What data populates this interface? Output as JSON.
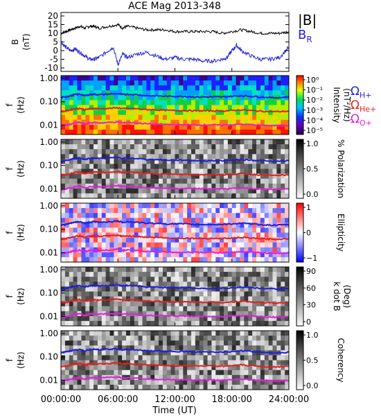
{
  "title": "ACE Mag 2013-348",
  "x_axis": {
    "label": "Time (UT)",
    "tick_labels": [
      "00:00:00",
      "06:00:00",
      "12:00:00",
      "18:00:00",
      "24:00:00"
    ]
  },
  "legend": {
    "top": [
      {
        "label": "|B|",
        "color": "#000000"
      },
      {
        "label": "B",
        "sub": "R",
        "color": "#1f1fdc"
      }
    ],
    "side": [
      {
        "label": "Ω",
        "sub": "H+",
        "color": "#1f1fdc"
      },
      {
        "label": "Ω",
        "sub": "He+",
        "color": "#e02020"
      },
      {
        "label": "Ω",
        "sub": "O+",
        "color": "#e020e0"
      }
    ]
  },
  "colorbars": [
    {
      "label": "Intensity",
      "label2": "(nT²/Hz)",
      "ticks": [
        "10⁰",
        "10⁻¹",
        "10⁻²",
        "10⁻³",
        "10⁻⁴",
        "10⁻⁵"
      ]
    },
    {
      "label": "% Polarization",
      "ticks": [
        "1.0",
        "0.5",
        "0.0"
      ]
    },
    {
      "label": "Ellipticity",
      "ticks": [
        "1",
        "0",
        "−1"
      ]
    },
    {
      "label": "k dot B",
      "label2": "(Deg)",
      "ticks": [
        "90",
        "60",
        "30",
        "0"
      ]
    },
    {
      "label": "Coherency",
      "ticks": [
        "1.0",
        "0.5",
        "0.0"
      ]
    }
  ],
  "chart_data": [
    {
      "type": "line",
      "panel": "field",
      "ylabel": "B",
      "yunit": "(nT)",
      "ylim": [
        -12,
        22
      ],
      "yticks": [
        20,
        15,
        10,
        5,
        0,
        -5,
        -10
      ],
      "xlim": [
        0,
        24
      ],
      "series": [
        {
          "name": "|B|",
          "color": "#000000",
          "x": [
            0,
            0.5,
            1,
            1.5,
            2,
            2.5,
            3,
            3.5,
            4,
            5,
            6,
            6.5,
            7,
            8,
            9,
            10,
            11,
            12,
            13,
            14,
            15,
            16,
            17,
            18,
            19,
            20,
            21,
            22,
            23,
            24
          ],
          "y": [
            10,
            11,
            12,
            13,
            14,
            13,
            14,
            14,
            13,
            14,
            15,
            13,
            14,
            13,
            12,
            12,
            12,
            11,
            11,
            11,
            11,
            11,
            10,
            11,
            12,
            11,
            10,
            10,
            10,
            11
          ]
        },
        {
          "name": "B_R",
          "color": "#1f1fdc",
          "x": [
            0,
            0.5,
            1,
            1.5,
            2,
            2.5,
            3,
            3.5,
            4,
            5,
            5.5,
            6,
            6.5,
            7,
            8,
            9,
            10,
            11,
            12,
            13,
            14,
            15,
            16,
            17,
            17.5,
            18,
            18.5,
            19,
            20,
            21,
            22,
            23,
            24
          ],
          "y": [
            5,
            2,
            0,
            1,
            -1,
            -3,
            -5,
            -5,
            -4,
            0,
            2,
            -8,
            -2,
            -4,
            -2,
            -1,
            -3,
            -5,
            -4,
            -5,
            -5,
            -6,
            -6,
            -5,
            -4,
            0,
            3,
            0,
            -3,
            -5,
            -5,
            -4,
            2
          ]
        }
      ]
    },
    {
      "type": "heatmap",
      "panel": "power spectral intensity",
      "ylabel": "f",
      "yunit": "(Hz)",
      "yscale": "log",
      "ylim": [
        0.004,
        1.3
      ],
      "yticks": [
        "1.00",
        "0.10",
        "0.01"
      ],
      "zscale": "log",
      "zlim": [
        1e-05,
        1
      ],
      "colormap": "rainbow"
    },
    {
      "type": "heatmap",
      "panel": "polarization",
      "ylabel": "f",
      "yunit": "(Hz)",
      "yscale": "log",
      "ylim": [
        0.004,
        1.3
      ],
      "yticks": [
        "1.00",
        "0.10",
        "0.01"
      ],
      "zlim": [
        0,
        1
      ],
      "colormap": "gray"
    },
    {
      "type": "heatmap",
      "panel": "ellipticity",
      "ylabel": "f",
      "yunit": "(Hz)",
      "yscale": "log",
      "ylim": [
        0.004,
        1.3
      ],
      "yticks": [
        "1.00",
        "0.10",
        "0.01"
      ],
      "zlim": [
        -1,
        1
      ],
      "colormap": "blue-white-red"
    },
    {
      "type": "heatmap",
      "panel": "wave normal angle",
      "ylabel": "f",
      "yunit": "(Hz)",
      "yscale": "log",
      "ylim": [
        0.004,
        1.3
      ],
      "yticks": [
        "1.00",
        "0.10",
        "0.01"
      ],
      "zlim": [
        0,
        90
      ],
      "colormap": "gray"
    },
    {
      "type": "heatmap",
      "panel": "coherency",
      "ylabel": "f",
      "yunit": "(Hz)",
      "yscale": "log",
      "ylim": [
        0.004,
        1.3
      ],
      "yticks": [
        "1.00",
        "0.10",
        "0.01"
      ],
      "zlim": [
        0,
        1
      ],
      "colormap": "gray"
    }
  ],
  "gyrofrequencies": {
    "xlim": [
      0,
      24
    ],
    "x": [
      0,
      0.5,
      1,
      1.5,
      2,
      2.5,
      3,
      3.5,
      4,
      5,
      6,
      6.5,
      7,
      8,
      9,
      10,
      11,
      12,
      13,
      14,
      15,
      16,
      17,
      18,
      19,
      20,
      21,
      22,
      23,
      24
    ],
    "series": [
      {
        "name": "Ω_H+",
        "color": "#1f1fdc",
        "y": [
          0.15,
          0.16,
          0.18,
          0.2,
          0.21,
          0.18,
          0.2,
          0.21,
          0.2,
          0.21,
          0.22,
          0.2,
          0.21,
          0.2,
          0.18,
          0.18,
          0.17,
          0.17,
          0.17,
          0.16,
          0.16,
          0.16,
          0.16,
          0.17,
          0.18,
          0.17,
          0.16,
          0.15,
          0.15,
          0.16
        ]
      },
      {
        "name": "Ω_He+",
        "color": "#e02020",
        "y": [
          0.038,
          0.04,
          0.045,
          0.05,
          0.052,
          0.045,
          0.05,
          0.052,
          0.05,
          0.052,
          0.055,
          0.05,
          0.052,
          0.05,
          0.046,
          0.045,
          0.043,
          0.042,
          0.042,
          0.041,
          0.041,
          0.041,
          0.04,
          0.042,
          0.045,
          0.042,
          0.04,
          0.038,
          0.038,
          0.04
        ]
      },
      {
        "name": "Ω_O+",
        "color": "#e020e0",
        "y": [
          0.0095,
          0.01,
          0.011,
          0.0125,
          0.013,
          0.011,
          0.0125,
          0.013,
          0.0125,
          0.013,
          0.014,
          0.0125,
          0.013,
          0.0125,
          0.0115,
          0.011,
          0.0108,
          0.0105,
          0.0105,
          0.0103,
          0.0103,
          0.0103,
          0.01,
          0.0105,
          0.011,
          0.0105,
          0.01,
          0.0095,
          0.0095,
          0.01
        ]
      }
    ]
  }
}
